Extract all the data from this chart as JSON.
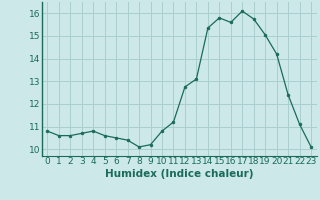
{
  "x": [
    0,
    1,
    2,
    3,
    4,
    5,
    6,
    7,
    8,
    9,
    10,
    11,
    12,
    13,
    14,
    15,
    16,
    17,
    18,
    19,
    20,
    21,
    22,
    23
  ],
  "y": [
    10.8,
    10.6,
    10.6,
    10.7,
    10.8,
    10.6,
    10.5,
    10.4,
    10.1,
    10.2,
    10.8,
    11.2,
    12.75,
    13.1,
    15.35,
    15.8,
    15.6,
    16.1,
    15.75,
    15.05,
    14.2,
    12.4,
    11.1,
    10.1
  ],
  "xlabel": "Humidex (Indice chaleur)",
  "ylim": [
    9.7,
    16.5
  ],
  "xlim": [
    -0.5,
    23.5
  ],
  "yticks": [
    10,
    11,
    12,
    13,
    14,
    15,
    16
  ],
  "xticks": [
    0,
    1,
    2,
    3,
    4,
    5,
    6,
    7,
    8,
    9,
    10,
    11,
    12,
    13,
    14,
    15,
    16,
    17,
    18,
    19,
    20,
    21,
    22,
    23
  ],
  "line_color": "#1a6b5a",
  "marker_color": "#1a6b5a",
  "bg_color": "#cce8e8",
  "grid_color": "#aacfcf",
  "tick_color": "#1a6b5a",
  "label_color": "#1a6b5a",
  "xlabel_fontsize": 7.5,
  "tick_fontsize": 6.5
}
